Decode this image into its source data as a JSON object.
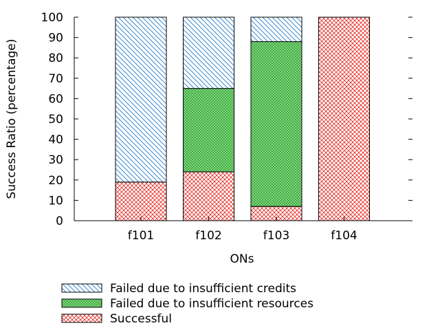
{
  "chart_data": {
    "type": "bar",
    "stacked": true,
    "categories": [
      "f101",
      "f102",
      "f103",
      "f104"
    ],
    "series": [
      {
        "name": "Successful",
        "values": [
          19,
          24,
          7,
          100
        ],
        "color": "#e0302a",
        "pattern": "crosshatch"
      },
      {
        "name": "Failed due to insufficient resources",
        "values": [
          0,
          41,
          81,
          0
        ],
        "color": "#2aa82a",
        "pattern": "dots"
      },
      {
        "name": "Failed due to insufficient credits",
        "values": [
          81,
          35,
          12,
          0
        ],
        "color": "#1f78c8",
        "pattern": "diagonal"
      }
    ],
    "legend_order": [
      "Failed due to insufficient credits",
      "Failed due to insufficient resources",
      "Successful"
    ],
    "xlabel": "ONs",
    "ylabel": "Success Ratio (percentage)",
    "ylim": [
      0,
      100
    ],
    "yticks": [
      0,
      10,
      20,
      30,
      40,
      50,
      60,
      70,
      80,
      90,
      100
    ],
    "grid": false,
    "legend_position": "bottom"
  }
}
